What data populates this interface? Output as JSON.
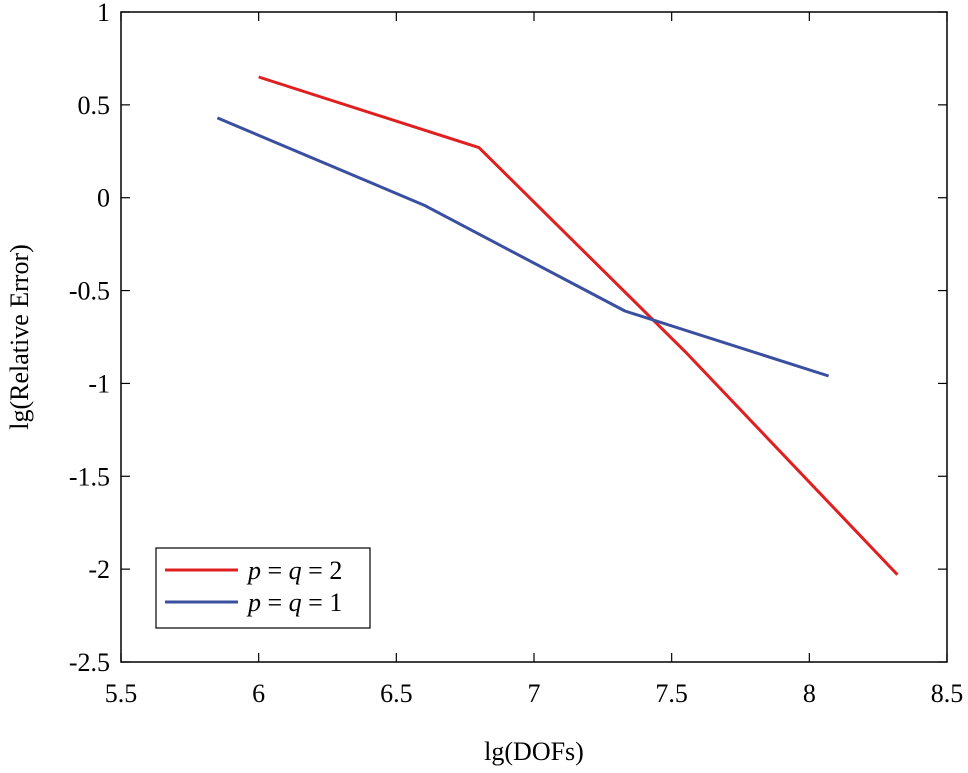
{
  "chart_data": {
    "type": "line",
    "title": "",
    "xlabel": "lg(DOFs)",
    "ylabel": "lg(Relative Error)",
    "xlim": [
      5.5,
      8.5
    ],
    "ylim": [
      -2.5,
      1
    ],
    "xticks": [
      5.5,
      6,
      6.5,
      7,
      7.5,
      8,
      8.5
    ],
    "yticks": [
      1,
      0.5,
      0,
      -0.5,
      -1,
      -1.5,
      -2,
      -2.5
    ],
    "xtick_labels": [
      "5.5",
      "6",
      "6.5",
      "7",
      "7.5",
      "8",
      "8.5"
    ],
    "ytick_labels": [
      "1",
      "0.5",
      "0",
      "-0.5",
      "-1",
      "-1.5",
      "-2",
      "-2.5"
    ],
    "grid": false,
    "legend_position": "bottom-left",
    "series": [
      {
        "name": "p = q = 2",
        "label_parts": {
          "v1": "p",
          "eq1": " = ",
          "v2": "q",
          "eq2": " = 2"
        },
        "color": "#e02020",
        "x": [
          6.0,
          6.8,
          7.55,
          8.32
        ],
        "y": [
          0.65,
          0.27,
          -0.83,
          -2.03
        ]
      },
      {
        "name": "p = q = 1",
        "label_parts": {
          "v1": "p",
          "eq1": " = ",
          "v2": "q",
          "eq2": " = 1"
        },
        "color": "#3a4fa0",
        "x": [
          5.85,
          6.6,
          7.33,
          8.07
        ],
        "y": [
          0.43,
          -0.04,
          -0.61,
          -0.96
        ]
      }
    ]
  }
}
